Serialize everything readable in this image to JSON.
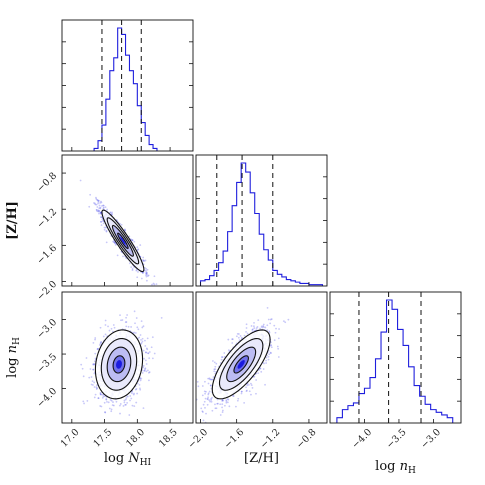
{
  "chart_data": {
    "type": "corner",
    "parameters": [
      {
        "key": "logNHI",
        "label_main": "log ",
        "label_italic": "N",
        "label_sub": "HI",
        "range": [
          16.85,
          18.85
        ],
        "ticks": [
          17.0,
          17.5,
          18.0,
          18.5
        ],
        "tick_labels": [
          "17.0",
          "17.5",
          "18.0",
          "18.5"
        ]
      },
      {
        "key": "ZH",
        "label_main": "[Z/H]",
        "label_italic": "",
        "label_sub": "",
        "range": [
          -2.05,
          -0.6
        ],
        "ticks": [
          -2.0,
          -1.6,
          -1.2,
          -0.8
        ],
        "tick_labels": [
          "−2.0",
          "−1.6",
          "−1.2",
          "−0.8"
        ]
      },
      {
        "key": "lognH",
        "label_main": "log ",
        "label_italic": "n",
        "label_sub": "H",
        "range": [
          -4.5,
          -2.6
        ],
        "ticks": [
          -4.0,
          -3.5,
          -3.0
        ],
        "tick_labels": [
          "−4.0",
          "−3.5",
          "−3.0"
        ]
      }
    ],
    "diagonal_histograms": [
      {
        "param": "logNHI",
        "quantiles": [
          17.46,
          17.76,
          18.06
        ],
        "bin_edges": [
          17.34,
          17.4,
          17.46,
          17.52,
          17.58,
          17.64,
          17.7,
          17.76,
          17.82,
          17.88,
          17.94,
          18.0,
          18.06,
          18.12,
          18.18,
          18.24,
          18.3
        ],
        "counts": [
          0.02,
          0.08,
          0.2,
          0.4,
          0.62,
          0.72,
          0.95,
          0.9,
          0.74,
          0.62,
          0.52,
          0.35,
          0.22,
          0.12,
          0.05,
          0.02
        ]
      },
      {
        "param": "ZH",
        "quantiles": [
          -1.82,
          -1.54,
          -1.2
        ],
        "bin_edges": [
          -2.0,
          -1.95,
          -1.9,
          -1.85,
          -1.8,
          -1.75,
          -1.7,
          -1.65,
          -1.6,
          -1.55,
          -1.5,
          -1.45,
          -1.4,
          -1.35,
          -1.3,
          -1.25,
          -1.2,
          -1.15,
          -1.1,
          -1.05,
          -1.0,
          -0.95,
          -0.9,
          -0.85,
          -0.8,
          -0.75,
          -0.7,
          -0.65
        ],
        "counts": [
          0.04,
          0.05,
          0.08,
          0.12,
          0.18,
          0.27,
          0.42,
          0.62,
          0.8,
          0.95,
          0.88,
          0.72,
          0.56,
          0.4,
          0.28,
          0.2,
          0.12,
          0.09,
          0.07,
          0.05,
          0.04,
          0.03,
          0.02,
          0.02,
          0.01,
          0.01,
          0.01
        ]
      },
      {
        "param": "lognH",
        "quantiles": [
          -4.08,
          -3.65,
          -3.18
        ],
        "bin_edges": [
          -4.4,
          -4.32,
          -4.24,
          -4.16,
          -4.08,
          -4.0,
          -3.92,
          -3.84,
          -3.76,
          -3.68,
          -3.6,
          -3.52,
          -3.44,
          -3.36,
          -3.28,
          -3.2,
          -3.12,
          -3.04,
          -2.96,
          -2.88,
          -2.8,
          -2.72
        ],
        "counts": [
          0.04,
          0.1,
          0.13,
          0.15,
          0.22,
          0.26,
          0.34,
          0.48,
          0.68,
          0.92,
          0.85,
          0.7,
          0.58,
          0.42,
          0.28,
          0.2,
          0.14,
          0.1,
          0.08,
          0.06,
          0.04
        ]
      }
    ],
    "off_diagonal": [
      {
        "x": "logNHI",
        "y": "ZH",
        "center": [
          17.78,
          -1.55
        ],
        "spread": [
          0.16,
          0.17
        ],
        "correlation": -0.93,
        "contour_levels": [
          0.5,
          1.0,
          1.5,
          2.0
        ]
      },
      {
        "x": "logNHI",
        "y": "lognH",
        "center": [
          17.72,
          -3.65
        ],
        "spread": [
          0.18,
          0.25
        ],
        "correlation": 0.15,
        "contour_levels": [
          0.5,
          1.0,
          1.5,
          2.0
        ]
      },
      {
        "x": "ZH",
        "y": "lognH",
        "center": [
          -1.55,
          -3.65
        ],
        "spread": [
          0.16,
          0.25
        ],
        "correlation": 0.72,
        "contour_levels": [
          0.5,
          1.0,
          1.5,
          2.0
        ]
      }
    ],
    "colors": {
      "histogram": "#1f1fdd",
      "scatter": "#3a3ae6",
      "density_core": "#1a1ae0",
      "contour": "#111111",
      "quantile_line": "#111111"
    },
    "grid": false,
    "title": ""
  }
}
